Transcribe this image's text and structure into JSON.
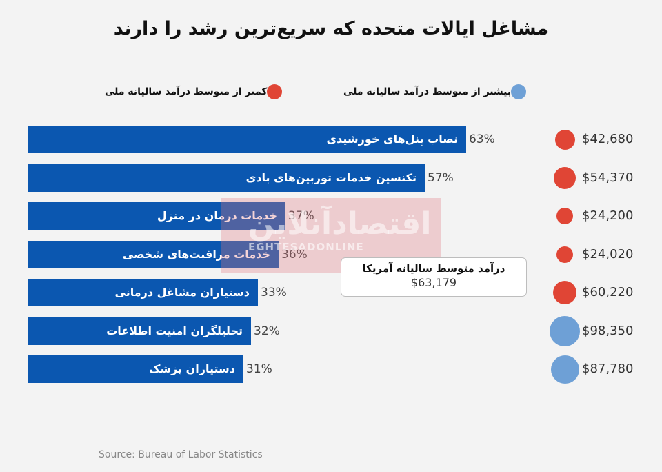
{
  "title": "مشاغل ایالات متحده که سریع‌ترین رشد را دارند",
  "legend": {
    "above": {
      "label": "بیشتر از متوسط درآمد سالیانه ملی",
      "color": "#6ea0d6"
    },
    "below": {
      "label": "کمتر از متوسط درآمد سالیانه ملی",
      "color": "#e04535"
    }
  },
  "average_box": {
    "label": "درآمد متوسط سالیانه آمریکا",
    "value": "$63,179"
  },
  "watermark": {
    "fa": "اقتصادآنلاین",
    "en": "EGHTESADONLINE"
  },
  "source": "Source: Bureau of Labor Statistics",
  "chart_data": {
    "type": "bar",
    "orientation": "horizontal",
    "title": "مشاغل ایالات متحده که سریع‌ترین رشد را دارند",
    "categories": [
      "نصاب پنل‌های خورشیدی",
      "تکنسین خدمات توربین‌های بادی",
      "خدمات درمان در منزل",
      "خدمات مراقبت‌های شخصی",
      "دستیاران مشاغل درمانی",
      "تحلیلگران امنیت اطلاعات",
      "دستیاران پزشک"
    ],
    "values": [
      63,
      57,
      37,
      36,
      33,
      32,
      31
    ],
    "value_labels": [
      "63%",
      "57%",
      "37%",
      "36%",
      "33%",
      "32%",
      "31%"
    ],
    "salaries": [
      42680,
      54370,
      24200,
      24020,
      60220,
      98350,
      87780
    ],
    "salary_labels": [
      "$42,680",
      "$54,370",
      "$24,200",
      "$24,020",
      "$60,220",
      "$98,350",
      "$87,780"
    ],
    "above_average": [
      false,
      false,
      false,
      false,
      false,
      true,
      true
    ],
    "national_average_salary": 63179
  }
}
